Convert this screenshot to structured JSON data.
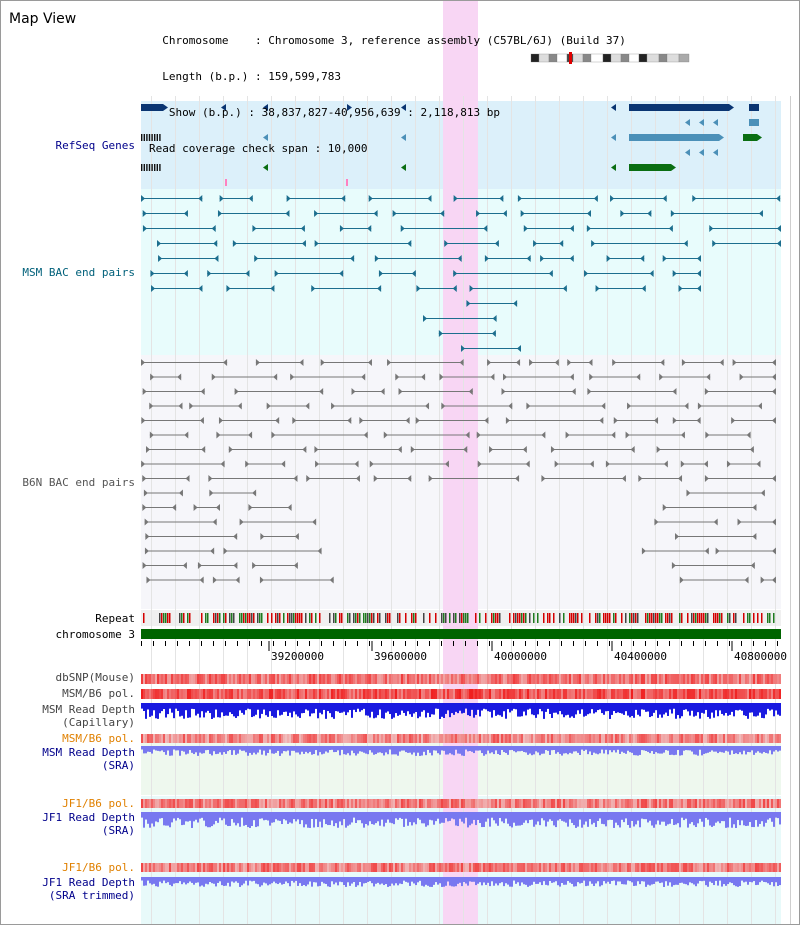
{
  "view": {
    "title": "Map View",
    "info_lines": [
      "  Chromosome    : Chromosome 3, reference assembly (C57BL/6J) (Build 37)",
      "  Length (b.p.) : 159,599,783",
      "   Show (b.p.) : 38,837,827-40,956,639 : 2,118,813 bp",
      "Read coverage check span : 10,000"
    ]
  },
  "tracks": {
    "refseq": "RefSeq Genes",
    "msm_bac": "MSM BAC end pairs",
    "b6n_bac": "B6N BAC end pairs",
    "repeat": "Repeat",
    "chromosome": "chromosome 3",
    "dbsnp": "dbSNP(Mouse)",
    "msm_b6_pol": "MSM/B6 pol.",
    "msm_depth_cap": "MSM Read Depth\n(Capillary)",
    "msm_b6_pol2": "MSM/B6 pol.",
    "msm_depth_sra": "MSM Read Depth\n(SRA)",
    "jf1_pol": "JF1/B6 pol.",
    "jf1_depth_sra": "JF1 Read Depth\n(SRA)",
    "jf1_pol2": "JF1/B6 pol.",
    "jf1_depth_trim": "JF1 Read Depth\n(SRA trimmed)"
  },
  "axis": {
    "ticks": [
      "39200000",
      "39600000",
      "40000000",
      "40400000",
      "40800000"
    ]
  },
  "colors": {
    "refseq_bg": "#dcf0fa",
    "msm_bg": "#e8fcfc",
    "b6n_bg": "#f6f6fa",
    "highlight": "#f8d6f4",
    "refseq_dark": "#0a3572",
    "refseq_mid": "#4b90b8",
    "refseq_green": "#0a6e12",
    "msm_line": "#1c6e8e",
    "b6n_line": "#777777",
    "chrom_green": "#006400",
    "depth_blue": "#1a1ae0",
    "depth_light": "#7878f0",
    "snp_red": "#f08080"
  }
}
